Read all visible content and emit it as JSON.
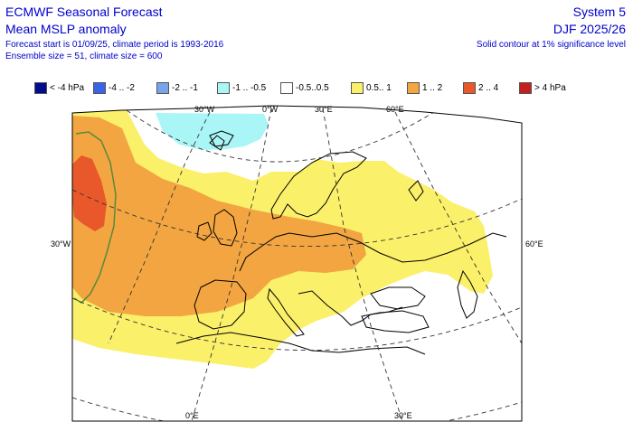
{
  "header": {
    "title": "ECMWF Seasonal Forecast",
    "subtitle": "Mean MSLP anomaly",
    "forecast_info": "Forecast start is 01/09/25, climate period is 1993-2016",
    "ensemble_info": "Ensemble size = 51, climate size = 600",
    "system": "System 5",
    "period": "DJF 2025/26",
    "significance": "Solid contour at 1% significance level"
  },
  "legend": [
    {
      "label": "< -4 hPa",
      "color": "#000c8c"
    },
    {
      "label": "-4 .. -2",
      "color": "#3a64e6"
    },
    {
      "label": "-2 .. -1",
      "color": "#78a4ee"
    },
    {
      "label": "-1 .. -0.5",
      "color": "#aaf5f5"
    },
    {
      "label": "-0.5..0.5",
      "color": "#ffffff"
    },
    {
      "label": "0.5.. 1",
      "color": "#fbf06a"
    },
    {
      "label": "1 .. 2",
      "color": "#f2a540"
    },
    {
      "label": "2 .. 4",
      "color": "#e8582a"
    },
    {
      "label": "> 4 hPa",
      "color": "#c41e1e"
    }
  ],
  "axis_labels": {
    "lon_30w_top": "30°W",
    "lon_0_top": "0°W",
    "lon_30e_top": "30°E",
    "lon_60e_top": "60°E",
    "lat_30w_left": "30°W",
    "lat_60e_right": "60°E",
    "lon_0_bottom": "0°E",
    "lon_30e_bottom": "30°E"
  },
  "colors": {
    "text": "#0000cc",
    "coast": "#000000",
    "grid": "#333333",
    "significance_contour": "#5a8a3a"
  }
}
